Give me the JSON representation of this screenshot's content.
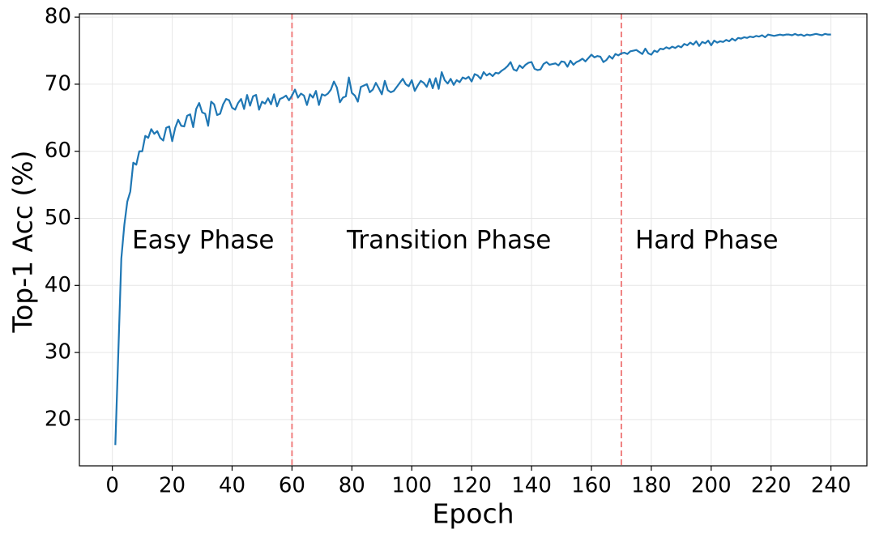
{
  "chart_data": {
    "type": "line",
    "xlabel": "Epoch",
    "ylabel": "Top-1 Acc (%)",
    "x": [
      1,
      2,
      3,
      4,
      5,
      6,
      7,
      8,
      9,
      10,
      11,
      12,
      13,
      14,
      15,
      16,
      17,
      18,
      19,
      20,
      21,
      22,
      23,
      24,
      25,
      26,
      27,
      28,
      29,
      30,
      31,
      32,
      33,
      34,
      35,
      36,
      37,
      38,
      39,
      40,
      41,
      42,
      43,
      44,
      45,
      46,
      47,
      48,
      49,
      50,
      51,
      52,
      53,
      54,
      55,
      56,
      57,
      58,
      59,
      60,
      61,
      62,
      63,
      64,
      65,
      66,
      67,
      68,
      69,
      70,
      71,
      72,
      73,
      74,
      75,
      76,
      77,
      78,
      79,
      80,
      81,
      82,
      83,
      84,
      85,
      86,
      87,
      88,
      89,
      90,
      91,
      92,
      93,
      94,
      95,
      96,
      97,
      98,
      99,
      100,
      101,
      102,
      103,
      104,
      105,
      106,
      107,
      108,
      109,
      110,
      111,
      112,
      113,
      114,
      115,
      116,
      117,
      118,
      119,
      120,
      121,
      122,
      123,
      124,
      125,
      126,
      127,
      128,
      129,
      130,
      131,
      132,
      133,
      134,
      135,
      136,
      137,
      138,
      139,
      140,
      141,
      142,
      143,
      144,
      145,
      146,
      147,
      148,
      149,
      150,
      151,
      152,
      153,
      154,
      155,
      156,
      157,
      158,
      159,
      160,
      161,
      162,
      163,
      164,
      165,
      166,
      167,
      168,
      169,
      170,
      171,
      172,
      173,
      174,
      175,
      176,
      177,
      178,
      179,
      180,
      181,
      182,
      183,
      184,
      185,
      186,
      187,
      188,
      189,
      190,
      191,
      192,
      193,
      194,
      195,
      196,
      197,
      198,
      199,
      200,
      201,
      202,
      203,
      204,
      205,
      206,
      207,
      208,
      209,
      210,
      211,
      212,
      213,
      214,
      215,
      216,
      217,
      218,
      219,
      220,
      221,
      222,
      223,
      224,
      225,
      226,
      227,
      228,
      229,
      230,
      231,
      232,
      233,
      234,
      235,
      236,
      237,
      238,
      239,
      240
    ],
    "series": [
      {
        "name": "Top-1 Acc",
        "color": "#1f77b4",
        "values": [
          16.2,
          30,
          44,
          49,
          52.5,
          54,
          58.3,
          58,
          60,
          60,
          62.3,
          62,
          63.3,
          62.6,
          63,
          62,
          61.6,
          63.5,
          63.7,
          61.5,
          63.5,
          64.7,
          63.8,
          63.7,
          65.3,
          65.5,
          63.6,
          66.3,
          67.2,
          65.8,
          65.6,
          63.8,
          67.4,
          67,
          65.4,
          65.6,
          67,
          67.8,
          67.6,
          66.5,
          66.2,
          67.2,
          67.8,
          66.3,
          68.4,
          66.8,
          68.2,
          68.4,
          66.2,
          67.4,
          67.1,
          67.9,
          67,
          68.5,
          66.7,
          67.8,
          68,
          68.3,
          67.6,
          68.3,
          69.2,
          68,
          68.6,
          68.3,
          66.9,
          68.5,
          68,
          69,
          66.9,
          68.5,
          68.3,
          68.6,
          69.2,
          70.4,
          69.5,
          67.3,
          68,
          68.2,
          71,
          68.7,
          68.3,
          67.4,
          69.6,
          69.8,
          70,
          68.8,
          69.2,
          70.2,
          69.4,
          68.5,
          70.5,
          69.1,
          68.8,
          69,
          69.6,
          70.2,
          70.8,
          70,
          69.7,
          70.6,
          69,
          69.8,
          70.5,
          70.2,
          69.6,
          70.8,
          69.4,
          70.9,
          69.3,
          71.8,
          70.6,
          70.1,
          70.8,
          69.9,
          70.6,
          70.3,
          71,
          70.8,
          71.1,
          70.4,
          71.5,
          71.3,
          70.8,
          71.8,
          71.3,
          71.6,
          71.2,
          71.7,
          71.6,
          72,
          72.3,
          72.7,
          73.3,
          72.2,
          72,
          72.8,
          72.4,
          72.9,
          73.2,
          73.3,
          72.3,
          72.1,
          72.2,
          73,
          73.3,
          72.9,
          73,
          73.1,
          72.8,
          73.4,
          73.3,
          72.6,
          73.5,
          72.9,
          73.3,
          73.5,
          73.8,
          73.4,
          73.9,
          74.4,
          74,
          74.2,
          74.1,
          73.3,
          73.6,
          74.2,
          73.8,
          74.5,
          74.3,
          74.6,
          74.7,
          74.5,
          74.9,
          75,
          75.1,
          74.8,
          74.5,
          75.3,
          74.6,
          74.4,
          75,
          74.8,
          75.3,
          75.2,
          75.5,
          75.3,
          75.6,
          75.4,
          75.7,
          75.5,
          76,
          75.8,
          76.2,
          75.9,
          76.4,
          75.7,
          76.3,
          76.1,
          76.5,
          75.8,
          76.5,
          76.2,
          76.4,
          76.3,
          76.6,
          76.4,
          76.8,
          76.5,
          76.9,
          76.8,
          77,
          76.9,
          77.1,
          77,
          77.2,
          77.1,
          77.3,
          77,
          77.4,
          77.3,
          77.2,
          77.3,
          77.4,
          77.3,
          77.4,
          77.4,
          77.3,
          77.5,
          77.3,
          77.4,
          77.2,
          77.4,
          77.3,
          77.4,
          77.5,
          77.4,
          77.3,
          77.5,
          77.4,
          77.4
        ]
      }
    ],
    "vlines": [
      60,
      170
    ],
    "vline_color": "#f08080",
    "annotations": [
      "Easy Phase",
      "Transition Phase",
      "Hard Phase"
    ],
    "xlim": [
      -11,
      252
    ],
    "ylim": [
      13.1,
      80.5
    ],
    "xticks": [
      0,
      20,
      40,
      60,
      80,
      100,
      120,
      140,
      160,
      180,
      200,
      220,
      240
    ],
    "yticks": [
      20,
      30,
      40,
      50,
      60,
      70,
      80
    ],
    "grid": true
  }
}
